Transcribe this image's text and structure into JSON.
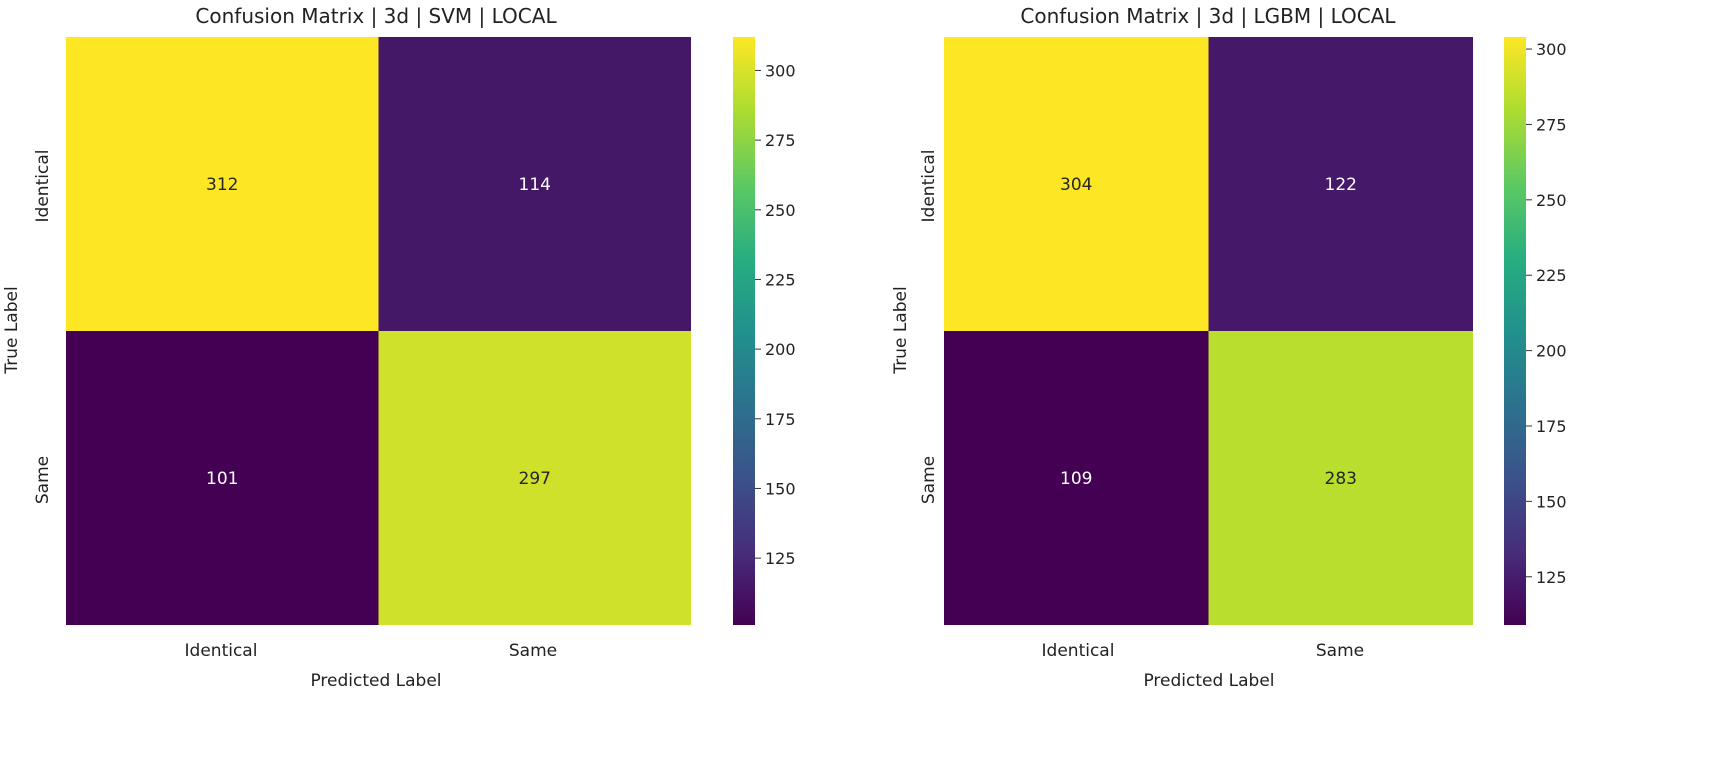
{
  "chart_data": [
    {
      "type": "heatmap",
      "title": "Confusion Matrix | 3d | SVM | LOCAL",
      "xlabel": "Predicted Label",
      "ylabel": "True Label",
      "x_categories": [
        "Identical",
        "Same"
      ],
      "y_categories": [
        "Identical",
        "Same"
      ],
      "values": [
        [
          312,
          114
        ],
        [
          101,
          297
        ]
      ],
      "colormap": "viridis",
      "colorbar": {
        "min": 101,
        "max": 312,
        "ticks": [
          125,
          150,
          175,
          200,
          225,
          250,
          275,
          300
        ]
      }
    },
    {
      "type": "heatmap",
      "title": "Confusion Matrix | 3d | LGBM | LOCAL",
      "xlabel": "Predicted Label",
      "ylabel": "True Label",
      "x_categories": [
        "Identical",
        "Same"
      ],
      "y_categories": [
        "Identical",
        "Same"
      ],
      "values": [
        [
          304,
          122
        ],
        [
          109,
          283
        ]
      ],
      "colormap": "viridis",
      "colorbar": {
        "min": 109,
        "max": 304,
        "ticks": [
          125,
          150,
          175,
          200,
          225,
          250,
          275,
          300
        ]
      }
    }
  ]
}
